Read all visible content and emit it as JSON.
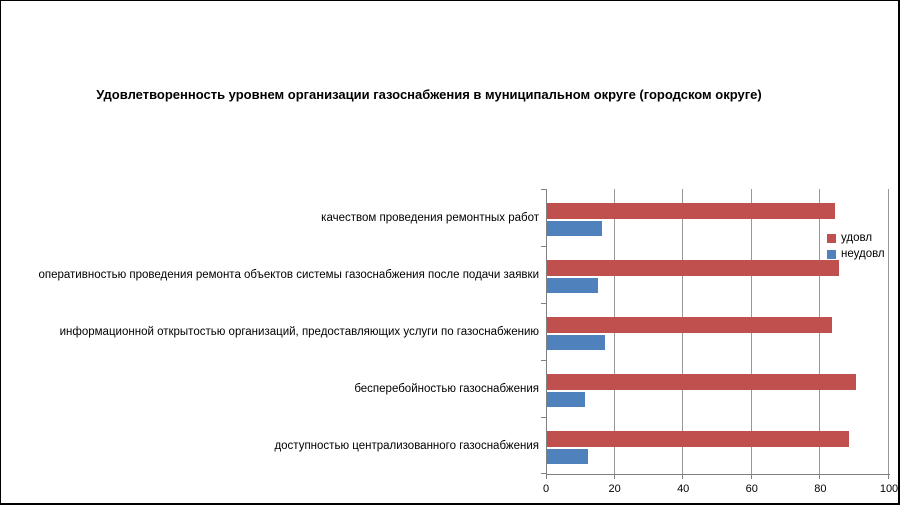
{
  "chart_data": {
    "type": "bar",
    "orientation": "horizontal",
    "title": "Удовлетворенность уровнем организации газоснабжения в муниципальном округе (городском округе)",
    "categories": [
      "качеством проведения ремонтных работ",
      "оперативностью проведения ремонта объектов системы газоснабжения после подачи заявки",
      "информационной открытостью организаций, предоставляющих услуги по газоснабжению",
      "бесперебойностью газоснабжения",
      "доступностью централизованного газоснабжения"
    ],
    "series": [
      {
        "name": "удовл",
        "color": "#C0504D",
        "values": [
          84,
          85,
          83,
          90,
          88
        ]
      },
      {
        "name": "неудовл",
        "color": "#4F81BD",
        "values": [
          16,
          15,
          17,
          11,
          12
        ]
      }
    ],
    "xlabel": "",
    "ylabel": "",
    "xlim": [
      0,
      100
    ],
    "xticks": [
      0,
      20,
      40,
      60,
      80,
      100
    ],
    "grid": true,
    "legend_position": "right-inside",
    "colors": {
      "gridline": "#989898",
      "axis": "#808080",
      "text": "#000000",
      "background": "#FFFFFF"
    }
  }
}
